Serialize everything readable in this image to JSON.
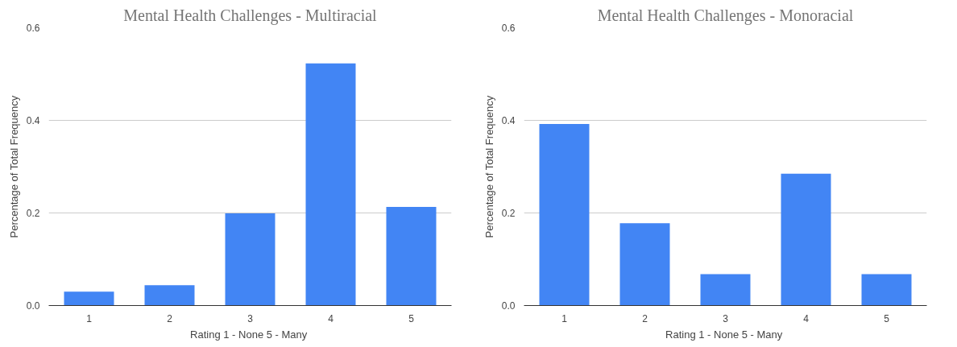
{
  "chart_data": [
    {
      "type": "bar",
      "title": "Mental Health Challenges - Multiracial",
      "xlabel": "Rating  1 - None 5 - Many",
      "ylabel": "Percentage of Total Frequency",
      "categories": [
        "1",
        "2",
        "3",
        "4",
        "5"
      ],
      "values": [
        0.03,
        0.044,
        0.199,
        0.523,
        0.213
      ],
      "color": "#4285f4",
      "ylim": [
        0,
        0.6
      ],
      "yticks": [
        {
          "value": 0,
          "label": "0.0"
        },
        {
          "value": 0.2,
          "label": "0.2"
        },
        {
          "value": 0.4,
          "label": "0.4"
        },
        {
          "value": 0.6,
          "label": "0.6"
        }
      ],
      "grid": "y"
    },
    {
      "type": "bar",
      "title": "Mental Health Challenges - Monoracial",
      "xlabel": "Rating  1 - None 5 - Many",
      "ylabel": "Percentage of Total Frequency",
      "categories": [
        "1",
        "2",
        "3",
        "4",
        "5"
      ],
      "values": [
        0.392,
        0.178,
        0.068,
        0.285,
        0.068
      ],
      "color": "#4285f4",
      "ylim": [
        0,
        0.6
      ],
      "yticks": [
        {
          "value": 0,
          "label": "0.0"
        },
        {
          "value": 0.2,
          "label": "0.2"
        },
        {
          "value": 0.4,
          "label": "0.4"
        },
        {
          "value": 0.6,
          "label": "0.6"
        }
      ],
      "grid": "y"
    }
  ]
}
